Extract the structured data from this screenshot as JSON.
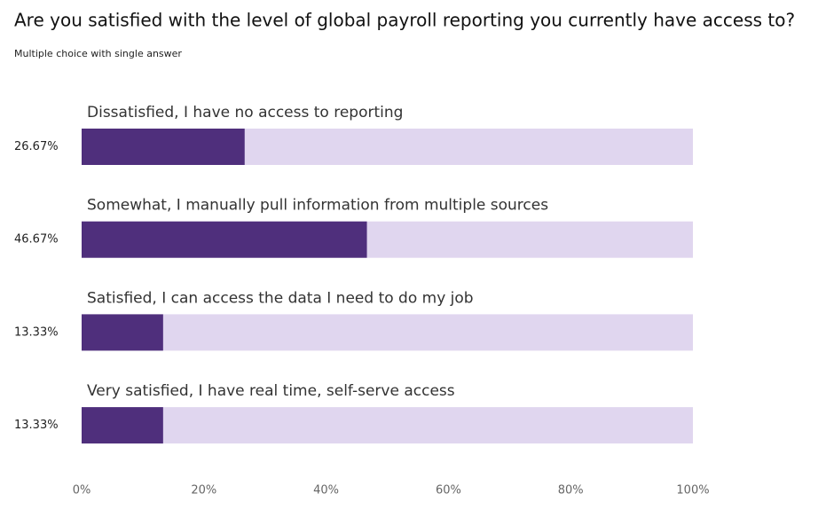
{
  "chart_data": {
    "type": "hbar",
    "title": "Are you satisfied with the level of global payroll reporting you currently have access to?",
    "subtitle": "Multiple choice with single answer",
    "categories": [
      "Dissatisfied, I have no access to reporting",
      "Somewhat, I manually pull information from multiple sources",
      "Satisfied, I can access the data I need to do my job",
      "Very satisfied, I have real time, self-serve access"
    ],
    "values": [
      26.67,
      46.67,
      13.33,
      13.33
    ],
    "value_labels": [
      "26.67%",
      "46.67%",
      "13.33%",
      "13.33%"
    ],
    "color": "#4f2f7c",
    "xlim": [
      0,
      100
    ],
    "xticks": [
      {
        "value": 0,
        "label": "0%"
      },
      {
        "value": 20,
        "label": "20%"
      },
      {
        "value": 40,
        "label": "40%"
      },
      {
        "value": 60,
        "label": "60%"
      },
      {
        "value": 80,
        "label": "80%"
      },
      {
        "value": 100,
        "label": "100%"
      }
    ]
  }
}
